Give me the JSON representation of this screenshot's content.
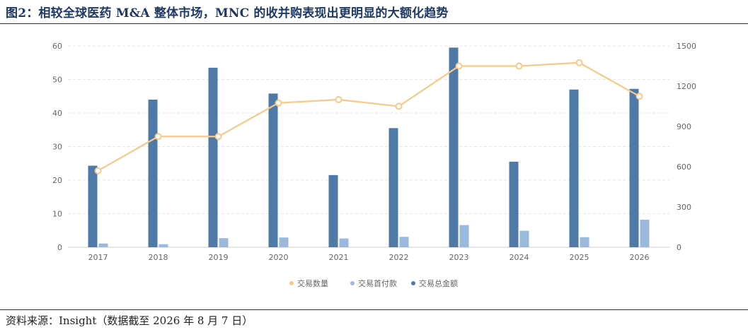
{
  "figure_title": "图2：相较全球医药 M&A 整体市场，MNC 的收并购表现出更明显的大额化趋势",
  "source_note": "资料来源：Insight（数据截至 2026 年 8 月 7 日）",
  "colors": {
    "total": "#4f7aa8",
    "upfront": "#9ab9dd",
    "count": "#f7c98a",
    "grid": "#e6e6e6",
    "title": "#1f3864"
  },
  "chart_data": {
    "type": "bar",
    "categories": [
      "2017",
      "2018",
      "2019",
      "2020",
      "2021",
      "2022",
      "2023",
      "2024",
      "2025",
      "2026"
    ],
    "series": [
      {
        "name": "交易总金额",
        "type": "bar",
        "axis": "left",
        "values": [
          24.3,
          44,
          53.5,
          45.8,
          21.5,
          35.5,
          59.5,
          25.5,
          47,
          47.2
        ]
      },
      {
        "name": "交易首付款",
        "type": "bar",
        "axis": "left",
        "values": [
          1.1,
          0.9,
          2.7,
          2.9,
          2.6,
          3.1,
          6.6,
          4.9,
          3,
          8.2
        ]
      },
      {
        "name": "交易数量",
        "type": "line",
        "axis": "right",
        "values": [
          570,
          825,
          825,
          1075,
          1100,
          1050,
          1350,
          1350,
          1375,
          1125
        ]
      }
    ],
    "legend_order": [
      "交易数量",
      "交易首付款",
      "交易总金额"
    ],
    "legend_position": "bottom-center",
    "y_left": {
      "min": 0,
      "max": 60,
      "ticks": [
        "0",
        "10",
        "20",
        "30",
        "40",
        "50",
        "60"
      ]
    },
    "y_right": {
      "min": 0,
      "max": 1500,
      "ticks": [
        "0",
        "300",
        "600",
        "900",
        "1200",
        "1500"
      ]
    },
    "grid": true
  }
}
